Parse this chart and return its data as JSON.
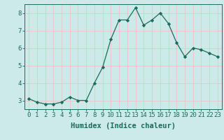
{
  "xlabel": "Humidex (Indice chaleur)",
  "x": [
    0,
    1,
    2,
    3,
    4,
    5,
    6,
    7,
    8,
    9,
    10,
    11,
    12,
    13,
    14,
    15,
    16,
    17,
    18,
    19,
    20,
    21,
    22,
    23
  ],
  "y": [
    3.1,
    2.9,
    2.8,
    2.8,
    2.9,
    3.2,
    3.0,
    3.0,
    4.0,
    4.9,
    6.5,
    7.6,
    7.6,
    8.3,
    7.3,
    7.6,
    8.0,
    7.4,
    6.3,
    5.5,
    6.0,
    5.9,
    5.7,
    5.5
  ],
  "line_color": "#1a6b5a",
  "marker": "D",
  "marker_size": 2.2,
  "bg_color": "#cceaea",
  "grid_color": "#e8c8c8",
  "ylim": [
    2.5,
    8.5
  ],
  "yticks": [
    3,
    4,
    5,
    6,
    7,
    8
  ],
  "xlim": [
    -0.5,
    23.5
  ],
  "xlabel_fontsize": 7.5,
  "tick_fontsize": 6.5
}
